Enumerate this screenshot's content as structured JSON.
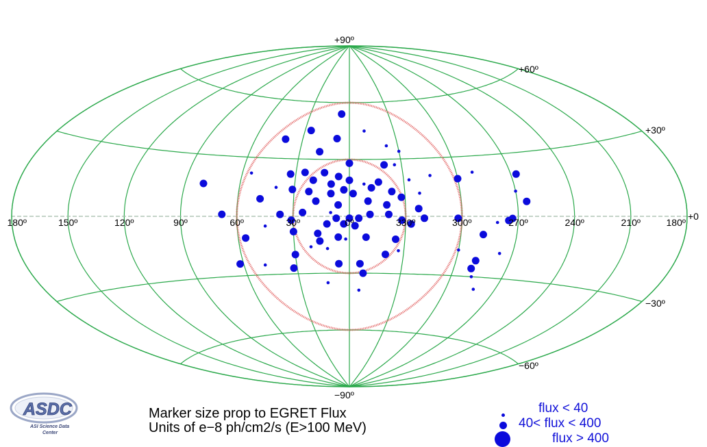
{
  "chart_data": {
    "type": "scatter",
    "projection": "aitoff",
    "coordinate_system": "galactic",
    "center_longitude": 0,
    "latitude_labels": [
      {
        "key": "p90",
        "text": "+90º",
        "value": 90
      },
      {
        "key": "p60",
        "text": "+60º",
        "value": 60
      },
      {
        "key": "p30",
        "text": "+30º",
        "value": 30
      },
      {
        "key": "z",
        "text": "+0",
        "value": 0
      },
      {
        "key": "m30",
        "text": "−30º",
        "value": -30
      },
      {
        "key": "m60",
        "text": "−60º",
        "value": -60
      },
      {
        "key": "m90",
        "text": "−90º",
        "value": -90
      }
    ],
    "longitude_labels": [
      {
        "text": "180º",
        "value": 180
      },
      {
        "text": "150º",
        "value": 150
      },
      {
        "text": "120º",
        "value": 120
      },
      {
        "text": "90º",
        "value": 90
      },
      {
        "text": "60º",
        "value": 60
      },
      {
        "text": "30º",
        "value": 30
      },
      {
        "text": "0º",
        "value": 0
      },
      {
        "text": "330º",
        "value": 330
      },
      {
        "text": "300º",
        "value": 300
      },
      {
        "text": "270º",
        "value": 270
      },
      {
        "text": "240º",
        "value": 240
      },
      {
        "text": "210º",
        "value": 210
      },
      {
        "text": "180º",
        "value": 180
      }
    ],
    "grid": true,
    "grid_color": "#2aa84a",
    "marker_color": "#0b0bdc",
    "circle_color": "#e05a5a",
    "circles": [
      {
        "center_l": 0,
        "center_b": 0,
        "radius_deg": 30
      },
      {
        "center_l": 0,
        "center_b": 0,
        "radius_deg": 60
      }
    ],
    "points": [
      {
        "l": 6,
        "b": 54,
        "size": "medium"
      },
      {
        "l": 350,
        "b": 45,
        "size": "small"
      },
      {
        "l": 26,
        "b": 45,
        "size": "medium"
      },
      {
        "l": 41,
        "b": 40,
        "size": "medium"
      },
      {
        "l": 8,
        "b": 41,
        "size": "medium"
      },
      {
        "l": 337,
        "b": 37,
        "size": "small"
      },
      {
        "l": 18,
        "b": 34,
        "size": "medium"
      },
      {
        "l": 330,
        "b": 34,
        "size": "small"
      },
      {
        "l": 0,
        "b": 28,
        "size": "medium"
      },
      {
        "l": 340,
        "b": 27,
        "size": "medium"
      },
      {
        "l": 334,
        "b": 27,
        "size": "small"
      },
      {
        "l": 55,
        "b": 22,
        "size": "small"
      },
      {
        "l": 14,
        "b": 23,
        "size": "medium"
      },
      {
        "l": 6,
        "b": 21,
        "size": "medium"
      },
      {
        "l": 25,
        "b": 23,
        "size": "medium"
      },
      {
        "l": 33,
        "b": 22,
        "size": "medium"
      },
      {
        "l": 10,
        "b": 17,
        "size": "medium"
      },
      {
        "l": 20,
        "b": 19,
        "size": "medium"
      },
      {
        "l": 327,
        "b": 19,
        "size": "small"
      },
      {
        "l": 315,
        "b": 21,
        "size": "small"
      },
      {
        "l": 291,
        "b": 22,
        "size": "small"
      },
      {
        "l": 300,
        "b": 19,
        "size": "medium"
      },
      {
        "l": 267,
        "b": 20,
        "size": "medium"
      },
      {
        "l": 80,
        "b": 16,
        "size": "medium"
      },
      {
        "l": 0,
        "b": 19,
        "size": "medium"
      },
      {
        "l": 40,
        "b": 15,
        "size": "small"
      },
      {
        "l": 31,
        "b": 14,
        "size": "medium"
      },
      {
        "l": 344,
        "b": 18,
        "size": "medium"
      },
      {
        "l": 348,
        "b": 15,
        "size": "medium"
      },
      {
        "l": 337,
        "b": 13,
        "size": "medium"
      },
      {
        "l": 352,
        "b": 17,
        "size": "small"
      },
      {
        "l": 10,
        "b": 12,
        "size": "medium"
      },
      {
        "l": 22,
        "b": 13,
        "size": "medium"
      },
      {
        "l": 3,
        "b": 14,
        "size": "medium"
      },
      {
        "l": 358,
        "b": 12,
        "size": "medium"
      },
      {
        "l": 332,
        "b": 10,
        "size": "medium"
      },
      {
        "l": 322,
        "b": 12,
        "size": "small"
      },
      {
        "l": 270,
        "b": 12,
        "size": "small"
      },
      {
        "l": 48,
        "b": 9,
        "size": "medium"
      },
      {
        "l": 18,
        "b": 8,
        "size": "medium"
      },
      {
        "l": 6,
        "b": 6,
        "size": "medium"
      },
      {
        "l": 350,
        "b": 8,
        "size": "medium"
      },
      {
        "l": 340,
        "b": 6,
        "size": "medium"
      },
      {
        "l": 323,
        "b": 4,
        "size": "medium"
      },
      {
        "l": 10,
        "b": 2,
        "size": "small"
      },
      {
        "l": 25,
        "b": 2,
        "size": "medium"
      },
      {
        "l": 37,
        "b": 1,
        "size": "medium"
      },
      {
        "l": 339,
        "b": 1,
        "size": "medium"
      },
      {
        "l": 349,
        "b": 1,
        "size": "medium"
      },
      {
        "l": 265,
        "b": 7,
        "size": "medium"
      },
      {
        "l": 68,
        "b": 1,
        "size": "medium"
      },
      {
        "l": 0,
        "b": -1,
        "size": "medium"
      },
      {
        "l": 7,
        "b": -1,
        "size": "medium"
      },
      {
        "l": 31,
        "b": -2,
        "size": "medium"
      },
      {
        "l": 355,
        "b": -1,
        "size": "medium"
      },
      {
        "l": 332,
        "b": -2,
        "size": "medium"
      },
      {
        "l": 302,
        "b": -1,
        "size": "medium"
      },
      {
        "l": 320,
        "b": -1,
        "size": "medium"
      },
      {
        "l": 273,
        "b": -1,
        "size": "medium"
      },
      {
        "l": 275,
        "b": -2,
        "size": "medium"
      },
      {
        "l": 327,
        "b": -4,
        "size": "medium"
      },
      {
        "l": 281,
        "b": -3,
        "size": "small"
      },
      {
        "l": 45,
        "b": -5,
        "size": "small"
      },
      {
        "l": 12,
        "b": -4,
        "size": "medium"
      },
      {
        "l": 3,
        "b": -4,
        "size": "medium"
      },
      {
        "l": 357,
        "b": -5,
        "size": "medium"
      },
      {
        "l": 30,
        "b": -8,
        "size": "medium"
      },
      {
        "l": 17,
        "b": -9,
        "size": "medium"
      },
      {
        "l": 6,
        "b": -11,
        "size": "medium"
      },
      {
        "l": 351,
        "b": -11,
        "size": "medium"
      },
      {
        "l": 335,
        "b": -12,
        "size": "medium"
      },
      {
        "l": 288,
        "b": -9,
        "size": "medium"
      },
      {
        "l": 56,
        "b": -11,
        "size": "medium"
      },
      {
        "l": 16,
        "b": -13,
        "size": "medium"
      },
      {
        "l": 2,
        "b": -12,
        "size": "small"
      },
      {
        "l": 21,
        "b": -16,
        "size": "small"
      },
      {
        "l": 12,
        "b": -17,
        "size": "small"
      },
      {
        "l": 333,
        "b": -18,
        "size": "small"
      },
      {
        "l": 340,
        "b": -20,
        "size": "medium"
      },
      {
        "l": 300,
        "b": -17,
        "size": "small"
      },
      {
        "l": 30,
        "b": -20,
        "size": "medium"
      },
      {
        "l": 277,
        "b": -18,
        "size": "small"
      },
      {
        "l": 289,
        "b": -22,
        "size": "medium"
      },
      {
        "l": 62,
        "b": -24,
        "size": "medium"
      },
      {
        "l": 48,
        "b": -25,
        "size": "small"
      },
      {
        "l": 32,
        "b": -27,
        "size": "medium"
      },
      {
        "l": 6,
        "b": -25,
        "size": "medium"
      },
      {
        "l": 354,
        "b": -25,
        "size": "medium"
      },
      {
        "l": 352,
        "b": -30,
        "size": "medium"
      },
      {
        "l": 290,
        "b": -26,
        "size": "medium"
      },
      {
        "l": 288,
        "b": -30,
        "size": "small"
      },
      {
        "l": 283,
        "b": -36,
        "size": "small"
      },
      {
        "l": 13,
        "b": -35,
        "size": "small"
      },
      {
        "l": 354,
        "b": -39,
        "size": "small"
      }
    ]
  },
  "caption": {
    "line1": "Marker size prop to EGRET Flux",
    "line2": "Units of e−8 ph/cm2/s (E>100 MeV)"
  },
  "legend": {
    "small": "flux < 40",
    "medium": "40< flux < 400",
    "large": "flux > 400"
  },
  "logo": {
    "name": "ASDC",
    "subtitle": "ASI Science Data Center"
  }
}
